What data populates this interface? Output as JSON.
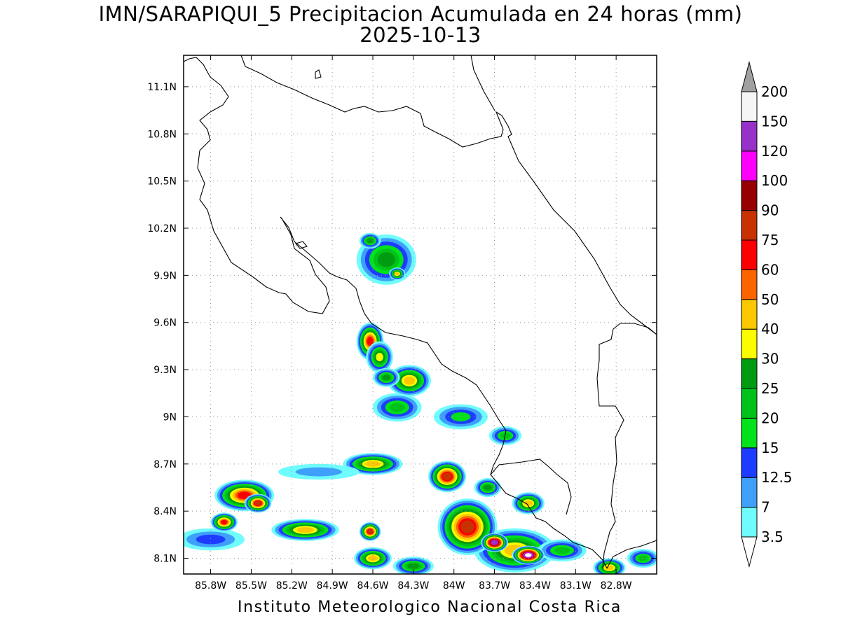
{
  "title": {
    "line1": "IMN/SARAPIQUI_5 Precipitacion Acumulada en 24 horas (mm)",
    "line2": "2025-10-13"
  },
  "footer": "Instituto Meteorologico Nacional Costa Rica",
  "map": {
    "lon_range": [
      -86.0,
      -82.5
    ],
    "lat_range": [
      8.0,
      11.3
    ],
    "lon_ticks": [
      {
        "value": -85.8,
        "label": "85.8W"
      },
      {
        "value": -85.5,
        "label": "85.5W"
      },
      {
        "value": -85.2,
        "label": "85.2W"
      },
      {
        "value": -84.9,
        "label": "84.9W"
      },
      {
        "value": -84.6,
        "label": "84.6W"
      },
      {
        "value": -84.3,
        "label": "84.3W"
      },
      {
        "value": -84.0,
        "label": "84W"
      },
      {
        "value": -83.7,
        "label": "83.7W"
      },
      {
        "value": -83.4,
        "label": "83.4W"
      },
      {
        "value": -83.1,
        "label": "83.1W"
      },
      {
        "value": -82.8,
        "label": "82.8W"
      }
    ],
    "lat_ticks": [
      {
        "value": 8.1,
        "label": "8.1N"
      },
      {
        "value": 8.4,
        "label": "8.4N"
      },
      {
        "value": 8.7,
        "label": "8.7N"
      },
      {
        "value": 9.0,
        "label": "9N"
      },
      {
        "value": 9.3,
        "label": "9.3N"
      },
      {
        "value": 9.6,
        "label": "9.6N"
      },
      {
        "value": 9.9,
        "label": "9.9N"
      },
      {
        "value": 10.2,
        "label": "10.2N"
      },
      {
        "value": 10.5,
        "label": "10.5N"
      },
      {
        "value": 10.8,
        "label": "10.8N"
      },
      {
        "value": 11.1,
        "label": "11.1N"
      }
    ],
    "grid": true,
    "colorbar": {
      "colors": [
        "#6ffcfc",
        "#3fa0fc",
        "#1e3cff",
        "#00e21c",
        "#00c218",
        "#009b10",
        "#fcfc00",
        "#fcc800",
        "#fc6400",
        "#fc0000",
        "#c83200",
        "#960000",
        "#fc00fc",
        "#9632c8",
        "#f5f5f5",
        "#a0a0a0"
      ],
      "levels": [
        "3.5",
        "7",
        "12.5",
        "15",
        "20",
        "25",
        "30",
        "40",
        "50",
        "60",
        "75",
        "90",
        "100",
        "120",
        "150",
        "200"
      ]
    },
    "precip_cells": [
      {
        "lon": -84.5,
        "lat": 10.0,
        "rx": 0.22,
        "ry": 0.16,
        "peak": 25
      },
      {
        "lon": -84.62,
        "lat": 10.12,
        "rx": 0.08,
        "ry": 0.05,
        "peak": 25
      },
      {
        "lon": -84.42,
        "lat": 9.91,
        "rx": 0.06,
        "ry": 0.04,
        "peak": 40
      },
      {
        "lon": -84.62,
        "lat": 9.48,
        "rx": 0.1,
        "ry": 0.12,
        "peak": 60
      },
      {
        "lon": -84.55,
        "lat": 9.38,
        "rx": 0.1,
        "ry": 0.1,
        "peak": 30
      },
      {
        "lon": -84.33,
        "lat": 9.23,
        "rx": 0.16,
        "ry": 0.1,
        "peak": 40
      },
      {
        "lon": -84.5,
        "lat": 9.25,
        "rx": 0.1,
        "ry": 0.06,
        "peak": 25
      },
      {
        "lon": -84.42,
        "lat": 9.06,
        "rx": 0.18,
        "ry": 0.09,
        "peak": 20
      },
      {
        "lon": -83.95,
        "lat": 9.0,
        "rx": 0.2,
        "ry": 0.08,
        "peak": 15
      },
      {
        "lon": -83.62,
        "lat": 8.88,
        "rx": 0.12,
        "ry": 0.06,
        "peak": 20
      },
      {
        "lon": -84.6,
        "lat": 8.7,
        "rx": 0.22,
        "ry": 0.07,
        "peak": 40
      },
      {
        "lon": -84.05,
        "lat": 8.62,
        "rx": 0.14,
        "ry": 0.1,
        "peak": 75
      },
      {
        "lon": -83.75,
        "lat": 8.55,
        "rx": 0.1,
        "ry": 0.06,
        "peak": 25
      },
      {
        "lon": -83.45,
        "lat": 8.45,
        "rx": 0.12,
        "ry": 0.07,
        "peak": 40
      },
      {
        "lon": -83.9,
        "lat": 8.3,
        "rx": 0.22,
        "ry": 0.18,
        "peak": 75
      },
      {
        "lon": -83.7,
        "lat": 8.2,
        "rx": 0.1,
        "ry": 0.06,
        "peak": 120
      },
      {
        "lon": -83.45,
        "lat": 8.12,
        "rx": 0.12,
        "ry": 0.06,
        "peak": 150
      },
      {
        "lon": -83.55,
        "lat": 8.15,
        "rx": 0.3,
        "ry": 0.14,
        "peak": 40
      },
      {
        "lon": -83.2,
        "lat": 8.15,
        "rx": 0.18,
        "ry": 0.07,
        "peak": 20
      },
      {
        "lon": -82.85,
        "lat": 8.04,
        "rx": 0.12,
        "ry": 0.06,
        "peak": 40
      },
      {
        "lon": -82.6,
        "lat": 8.1,
        "rx": 0.12,
        "ry": 0.06,
        "peak": 20
      },
      {
        "lon": -85.55,
        "lat": 8.5,
        "rx": 0.22,
        "ry": 0.1,
        "peak": 60
      },
      {
        "lon": -85.45,
        "lat": 8.45,
        "rx": 0.1,
        "ry": 0.06,
        "peak": 75
      },
      {
        "lon": -85.7,
        "lat": 8.33,
        "rx": 0.1,
        "ry": 0.06,
        "peak": 60
      },
      {
        "lon": -85.1,
        "lat": 8.28,
        "rx": 0.25,
        "ry": 0.07,
        "peak": 40
      },
      {
        "lon": -84.62,
        "lat": 8.27,
        "rx": 0.08,
        "ry": 0.06,
        "peak": 75
      },
      {
        "lon": -84.6,
        "lat": 8.1,
        "rx": 0.14,
        "ry": 0.07,
        "peak": 40
      },
      {
        "lon": -84.3,
        "lat": 8.05,
        "rx": 0.15,
        "ry": 0.06,
        "peak": 25
      },
      {
        "lon": -85.8,
        "lat": 8.22,
        "rx": 0.25,
        "ry": 0.07,
        "peak": 12.5
      },
      {
        "lon": -85.0,
        "lat": 8.65,
        "rx": 0.3,
        "ry": 0.05,
        "peak": 7
      }
    ]
  }
}
